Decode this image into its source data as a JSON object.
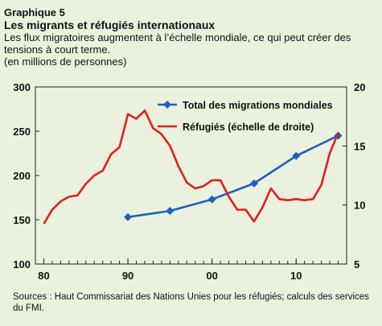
{
  "header": {
    "label": "Graphique 5",
    "title": "Les migrants et réfugiés internationaux",
    "subtitle": "Les flux migratoires augmentent à l’échelle mondiale, ce qui peut créer des tensions à court terme.",
    "units": "(en millions de personnes)"
  },
  "footer": {
    "source": "Sources : Haut Commissariat des Nations Unies pour les réfugiés; calculs des services du FMI."
  },
  "colors": {
    "migrations": "#1f5fbf",
    "refugees": "#e0201b",
    "background": "#eaf1de"
  },
  "chart_data": {
    "type": "line",
    "x_tick_labels": [
      "80",
      "90",
      "00",
      "10"
    ],
    "x_ticks": [
      1980,
      1990,
      2000,
      2010
    ],
    "xlim": [
      1979,
      2016
    ],
    "ylim_left": [
      100,
      300
    ],
    "ylim_right": [
      5,
      20
    ],
    "y_ticks_left": [
      100,
      150,
      200,
      250,
      300
    ],
    "y_ticks_right": [
      5,
      10,
      15,
      20
    ],
    "legend_position": "top-right",
    "series": [
      {
        "name": "Total des migrations mondiales",
        "axis": "left",
        "marker": "diamond",
        "x": [
          1990,
          1995,
          2000,
          2005,
          2010,
          2015
        ],
        "values": [
          153,
          160,
          173,
          191,
          222,
          245
        ]
      },
      {
        "name": "Réfugiés (échelle de droite)",
        "axis": "right",
        "marker": "none",
        "x": [
          1980,
          1981,
          1982,
          1983,
          1984,
          1985,
          1986,
          1987,
          1988,
          1989,
          1990,
          1991,
          1992,
          1993,
          1994,
          1995,
          1996,
          1997,
          1998,
          1999,
          2000,
          2001,
          2002,
          2003,
          2004,
          2005,
          2006,
          2007,
          2008,
          2009,
          2010,
          2011,
          2012,
          2013,
          2014,
          2015
        ],
        "values": [
          8.4,
          9.6,
          10.3,
          10.7,
          10.8,
          11.8,
          12.5,
          12.9,
          14.3,
          14.9,
          17.7,
          17.3,
          18.0,
          16.5,
          16.0,
          15.0,
          13.3,
          11.9,
          11.4,
          11.6,
          12.1,
          12.1,
          10.7,
          9.6,
          9.6,
          8.6,
          9.8,
          11.4,
          10.5,
          10.4,
          10.5,
          10.4,
          10.5,
          11.7,
          14.4,
          16.1
        ]
      }
    ]
  }
}
